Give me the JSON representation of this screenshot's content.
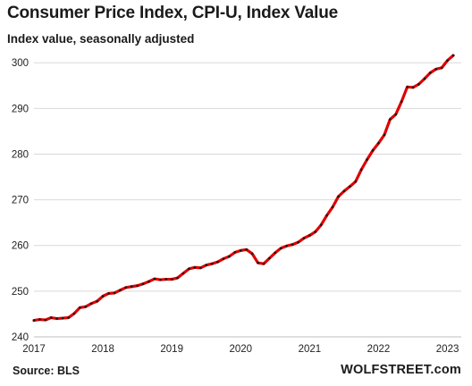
{
  "chart_data": {
    "type": "line",
    "title": "Consumer  Price Index, CPI-U, Index Value",
    "subtitle": "Index value, seasonally adjusted",
    "xlabel": "",
    "ylabel": "",
    "source": "Source: BLS",
    "brand": "WOLFSTREET.com",
    "ylim": [
      240,
      302
    ],
    "xlim": [
      2017.0,
      2023.2
    ],
    "y_ticks": [
      240,
      250,
      260,
      270,
      280,
      290,
      300
    ],
    "x_ticks": [
      2017,
      2018,
      2019,
      2020,
      2021,
      2022,
      2023
    ],
    "grid": "horizontal",
    "line_color": "#e00000",
    "marker_color": "#1a1a1a",
    "series": [
      {
        "x_start": "2017-01",
        "values": [
          243.6,
          243.8,
          243.7,
          244.2,
          244.0,
          244.1,
          244.2,
          245.1,
          246.4,
          246.6,
          247.3,
          247.8,
          248.9,
          249.5,
          249.6,
          250.2,
          250.8,
          251.0,
          251.2,
          251.6,
          252.1,
          252.7,
          252.5,
          252.6,
          252.6,
          252.9,
          253.9,
          254.9,
          255.2,
          255.1,
          255.7,
          256.0,
          256.4,
          257.1,
          257.6,
          258.5,
          258.9,
          259.1,
          258.2,
          256.2,
          256.0,
          257.2,
          258.4,
          259.4,
          259.9,
          260.2,
          260.7,
          261.6,
          262.2,
          263.0,
          264.5,
          266.6,
          268.4,
          270.7,
          271.9,
          272.9,
          274.0,
          276.6,
          278.8,
          280.8,
          282.4,
          284.2,
          287.6,
          288.7,
          291.5,
          294.7,
          294.6,
          295.3,
          296.5,
          297.8,
          298.6,
          298.9,
          300.5,
          301.6
        ]
      }
    ]
  }
}
